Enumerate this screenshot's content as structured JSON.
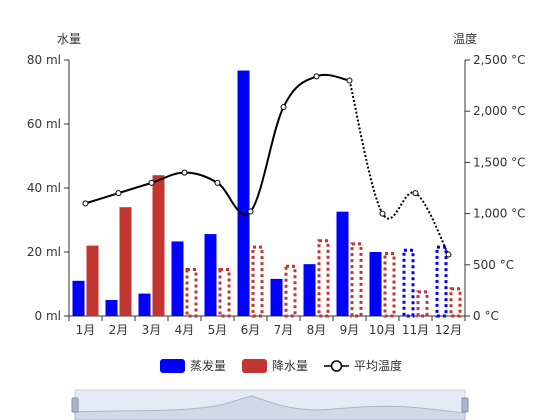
{
  "chart_data": {
    "type": "bar",
    "categories": [
      "1月",
      "2月",
      "3月",
      "4月",
      "5月",
      "6月",
      "7月",
      "8月",
      "9月",
      "10月",
      "11月",
      "12月"
    ],
    "series": [
      {
        "name": "蒸发量",
        "type": "bar",
        "axis": "left",
        "color": "#0000ff",
        "values": [
          11,
          5,
          7,
          23.3,
          25.6,
          76.7,
          11.6,
          16.2,
          32.6,
          20,
          21,
          22
        ],
        "dashed_from_index": 10
      },
      {
        "name": "降水量",
        "type": "bar",
        "axis": "left",
        "color": "#c23531",
        "values": [
          22,
          34,
          44,
          15,
          15,
          22,
          16,
          24,
          23,
          20,
          8,
          9
        ],
        "dashed_from_index": 3
      },
      {
        "name": "平均温度",
        "type": "line",
        "axis": "right",
        "color": "#000000",
        "values": [
          1100,
          1200,
          1300,
          1400,
          1300,
          1020,
          2040,
          2340,
          2300,
          1000,
          1200,
          600
        ],
        "dotted_from_index": 8
      }
    ],
    "y_left": {
      "name": "水量",
      "ticks": [
        "0 ml",
        "20 ml",
        "40 ml",
        "60 ml",
        "80 ml"
      ],
      "ylim": [
        0,
        80
      ]
    },
    "y_right": {
      "name": "温度",
      "ticks": [
        "0 °C",
        "500 °C",
        "1,000 °C",
        "1,500 °C",
        "2,000 °C",
        "2,500 °C"
      ],
      "ylim": [
        0,
        2500
      ]
    },
    "legend": {
      "placement": "bottom-center"
    },
    "grid": false,
    "datazoom": true
  }
}
